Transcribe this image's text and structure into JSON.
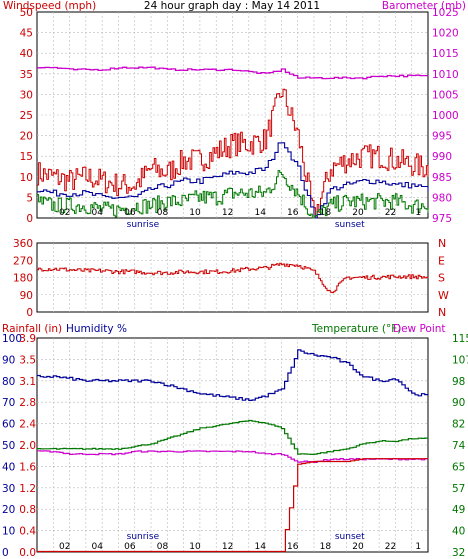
{
  "header": {
    "left_label": "Windspeed (mph)",
    "title": "24 hour graph day : May 14 2011",
    "right_label": "Barometer (mb)"
  },
  "colors": {
    "windspeed": "#cc0000",
    "wind_avg": "#000099",
    "wind_min": "#007700",
    "barometer": "#cc00cc",
    "rain": "#cc0000",
    "humidity": "#000099",
    "temperature": "#007700",
    "dewpoint": "#cc00cc",
    "grid": "#bbbbbb"
  },
  "markers": {
    "sunrise": "sunrise",
    "sunset": "sunset"
  },
  "chart_data": [
    {
      "type": "line",
      "panel": "wind-barometer",
      "title": "24 hour graph day : May 14 2011",
      "ylabel": "Windspeed (mph)",
      "y2label": "Barometer (mb)",
      "ylim": [
        0,
        50
      ],
      "y2lim": [
        975,
        1025
      ],
      "yticks": [
        "0",
        "5",
        "10",
        "15",
        "20",
        "25",
        "30",
        "35",
        "40",
        "45",
        "50"
      ],
      "y2ticks": [
        "975",
        "980",
        "985",
        "990",
        "995",
        "1000",
        "1005",
        "1010",
        "1015",
        "1020",
        "1025"
      ],
      "xticks": [
        "02",
        "04",
        "06",
        "08",
        "10",
        "12",
        "14",
        "16",
        "18",
        "20",
        "22",
        "1"
      ],
      "x": [
        0,
        1,
        2,
        3,
        4,
        5,
        6,
        7,
        8,
        9,
        10,
        11,
        12,
        13,
        14,
        15,
        16,
        17,
        18,
        19,
        20,
        21,
        22,
        23,
        24
      ],
      "series": [
        {
          "key": "gust",
          "values": [
            11,
            10,
            9,
            10,
            9,
            8,
            8,
            12,
            11,
            14,
            14,
            16,
            18,
            18,
            19,
            31,
            20,
            0,
            12,
            14,
            15,
            15,
            14,
            13,
            12
          ]
        },
        {
          "key": "avg",
          "values": [
            7,
            6,
            6,
            6,
            5,
            5,
            5,
            7,
            8,
            9,
            9,
            10,
            11,
            11,
            12,
            19,
            12,
            0,
            7,
            8,
            9,
            9,
            8,
            8,
            7
          ]
        },
        {
          "key": "low",
          "values": [
            4,
            3,
            3,
            3,
            2,
            2,
            3,
            3,
            4,
            4,
            5,
            5,
            6,
            6,
            6,
            11,
            6,
            0,
            3,
            4,
            4,
            4,
            4,
            3,
            3
          ]
        },
        {
          "key": "barometer",
          "values": [
            1011.5,
            1011.5,
            1011,
            1011,
            1011,
            1011.5,
            1011.5,
            1011.5,
            1011,
            1011,
            1011,
            1011,
            1011,
            1010.5,
            1010,
            1011,
            1009,
            1009,
            1009,
            1009,
            1009,
            1009.5,
            1009.5,
            1009.5,
            1009.5
          ]
        }
      ]
    },
    {
      "type": "line",
      "panel": "wind-direction",
      "ylim": [
        0,
        360
      ],
      "yticks": [
        "0",
        "90",
        "180",
        "270",
        "360"
      ],
      "compass": [
        "N",
        "W",
        "S",
        "E",
        "N"
      ],
      "x": [
        0,
        1,
        2,
        3,
        4,
        5,
        6,
        7,
        8,
        9,
        10,
        11,
        12,
        13,
        14,
        15,
        16,
        17,
        18,
        19,
        20,
        21,
        22,
        23,
        24
      ],
      "series": [
        {
          "key": "direction",
          "values": [
            225,
            225,
            220,
            215,
            215,
            210,
            210,
            205,
            205,
            210,
            210,
            210,
            215,
            225,
            230,
            250,
            245,
            210,
            100,
            180,
            180,
            182,
            185,
            185,
            180
          ]
        }
      ]
    },
    {
      "type": "line",
      "panel": "rain-humidity-temperature",
      "ylabel": "Rainfall (in)",
      "y2label": "Humidity %",
      "y3label": "Temperature (°F)",
      "y4label": "Dew Point",
      "rain_ylim": [
        0,
        3.9
      ],
      "humidity_ylim": [
        0,
        100
      ],
      "temp_ylim": [
        32,
        115
      ],
      "rain_ticks": [
        "0.0",
        "0.4",
        "0.8",
        "1.2",
        "1.6",
        "2.0",
        "2.4",
        "2.8",
        "3.1",
        "3.5",
        "3.9"
      ],
      "humidity_ticks": [
        "0",
        "10",
        "20",
        "30",
        "40",
        "50",
        "60",
        "70",
        "80",
        "90",
        "100"
      ],
      "temp_ticks": [
        "32",
        "40",
        "49",
        "57",
        "65",
        "74",
        "82",
        "90",
        "98",
        "107",
        "115"
      ],
      "x": [
        0,
        1,
        2,
        3,
        4,
        5,
        6,
        7,
        8,
        9,
        10,
        11,
        12,
        13,
        14,
        15,
        16,
        17,
        18,
        19,
        20,
        21,
        22,
        23,
        24
      ],
      "series": [
        {
          "key": "rain",
          "values": [
            0.01,
            0.01,
            0.01,
            0.01,
            0.01,
            0.01,
            0.01,
            0.01,
            0.01,
            0.01,
            0.01,
            0.01,
            0.01,
            0.01,
            0.01,
            0.01,
            1.6,
            1.65,
            1.65,
            1.65,
            1.7,
            1.7,
            1.7,
            1.7,
            1.7
          ]
        },
        {
          "key": "humidity",
          "values": [
            82,
            82,
            81,
            80,
            80,
            80,
            80,
            80,
            78,
            76,
            74,
            73,
            72,
            71,
            73,
            76,
            94,
            92,
            91,
            88,
            82,
            80,
            81,
            74,
            73
          ]
        },
        {
          "key": "temperature",
          "values": [
            72,
            72,
            72,
            72,
            72,
            72,
            73,
            74,
            76,
            78,
            80,
            81,
            82,
            83,
            82,
            80,
            70,
            70,
            71,
            72,
            74,
            75,
            75,
            76,
            76
          ]
        },
        {
          "key": "dewpoint",
          "values": [
            71,
            71,
            70,
            70,
            70,
            70,
            71,
            71,
            71,
            71,
            71,
            71,
            71,
            71,
            70,
            70,
            67,
            67,
            68,
            68,
            68,
            68,
            68,
            68,
            68
          ]
        }
      ]
    }
  ]
}
